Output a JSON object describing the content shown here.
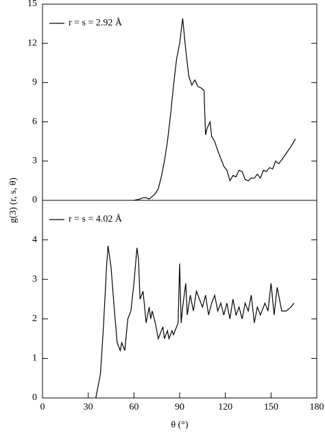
{
  "chart_data": [
    {
      "type": "line",
      "ylabel": "g(3) (r, s, θ)",
      "x": [
        60,
        64,
        66,
        68,
        70,
        72,
        74,
        76,
        78,
        80,
        82,
        84,
        86,
        88,
        90,
        92,
        94,
        96,
        98,
        100,
        102,
        104,
        106,
        107,
        108,
        110,
        111,
        113,
        115,
        117,
        119,
        121,
        123,
        125,
        127,
        129,
        131,
        133,
        135,
        137,
        139,
        141,
        143,
        145,
        147,
        149,
        151,
        153,
        155,
        157,
        160,
        163,
        166
      ],
      "series": [
        {
          "name": "r = s = 2.92 Å",
          "color": "#000000",
          "values": [
            0,
            0.1,
            0.2,
            0.2,
            0.1,
            0.3,
            0.5,
            0.9,
            1.8,
            3.0,
            4.5,
            6.5,
            8.8,
            10.8,
            12.0,
            13.9,
            11.5,
            9.5,
            8.8,
            9.2,
            8.7,
            8.6,
            8.4,
            5.0,
            5.5,
            6.0,
            4.9,
            4.5,
            3.8,
            3.2,
            2.6,
            2.3,
            1.5,
            1.9,
            1.8,
            2.3,
            2.2,
            1.6,
            1.5,
            1.7,
            1.7,
            2.0,
            1.7,
            2.3,
            2.2,
            2.5,
            2.4,
            3.0,
            2.8,
            3.1,
            3.6,
            4.1,
            4.7
          ]
        }
      ],
      "xlim": [
        0,
        180
      ],
      "ylim": [
        0,
        15
      ],
      "yticks": [
        0,
        3,
        6,
        9,
        12,
        15
      ],
      "legend": "upper-left"
    },
    {
      "type": "line",
      "xlabel": "θ (°)",
      "x": [
        35,
        38,
        40,
        42,
        43,
        45,
        47,
        49,
        51,
        52,
        54,
        56,
        58,
        60,
        62,
        63,
        64,
        66,
        67,
        68,
        70,
        71,
        72,
        74,
        76,
        78,
        79,
        80,
        82,
        83,
        85,
        86,
        88,
        89,
        90,
        91,
        92,
        94,
        95,
        97,
        99,
        101,
        103,
        105,
        107,
        109,
        111,
        113,
        115,
        117,
        119,
        121,
        123,
        125,
        127,
        129,
        131,
        133,
        135,
        137,
        139,
        141,
        143,
        146,
        148,
        150,
        152,
        154,
        157,
        160,
        163,
        165
      ],
      "series": [
        {
          "name": "r = s = 4.02 Å",
          "color": "#000000",
          "values": [
            0,
            0.6,
            1.8,
            3.3,
            3.85,
            3.3,
            2.3,
            1.4,
            1.2,
            1.4,
            1.2,
            2.0,
            2.2,
            2.9,
            3.8,
            3.5,
            2.5,
            2.7,
            2.3,
            1.9,
            2.3,
            2.0,
            2.2,
            1.9,
            1.5,
            1.7,
            1.8,
            1.5,
            1.7,
            1.5,
            1.7,
            1.6,
            1.8,
            1.9,
            3.4,
            1.9,
            2.3,
            2.9,
            2.1,
            2.6,
            2.2,
            2.7,
            2.5,
            2.3,
            2.6,
            2.1,
            2.4,
            2.6,
            2.2,
            2.4,
            2.1,
            2.4,
            2.0,
            2.5,
            2.1,
            2.3,
            2.0,
            2.4,
            2.2,
            2.6,
            1.9,
            2.3,
            2.1,
            2.4,
            2.2,
            2.9,
            2.1,
            2.8,
            2.2,
            2.2,
            2.3,
            2.4
          ]
        }
      ],
      "xlim": [
        0,
        180
      ],
      "xticks": [
        0,
        30,
        60,
        90,
        120,
        150,
        180
      ],
      "ylim": [
        0,
        5
      ],
      "yticks": [
        0,
        1,
        2,
        3,
        4
      ],
      "legend": "upper-left"
    }
  ]
}
